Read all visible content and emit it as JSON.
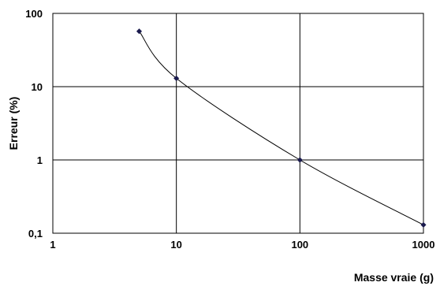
{
  "chart_data": {
    "type": "line",
    "title": "",
    "xlabel": "Masse vraie (g)",
    "ylabel": "Erreur (%)",
    "xscale": "log",
    "yscale": "log",
    "xlim": [
      1,
      1000
    ],
    "ylim": [
      0.1,
      100
    ],
    "grid": true,
    "x_tick_labels": [
      "1",
      "10",
      "100",
      "1000"
    ],
    "y_tick_labels": [
      "100",
      "10",
      "1",
      "0,1"
    ],
    "series": [
      {
        "x": [
          5,
          10,
          100,
          1000
        ],
        "y": [
          57,
          13,
          1,
          0.13
        ],
        "color": "#000000",
        "marker_color": "#1a1a4d"
      }
    ]
  }
}
